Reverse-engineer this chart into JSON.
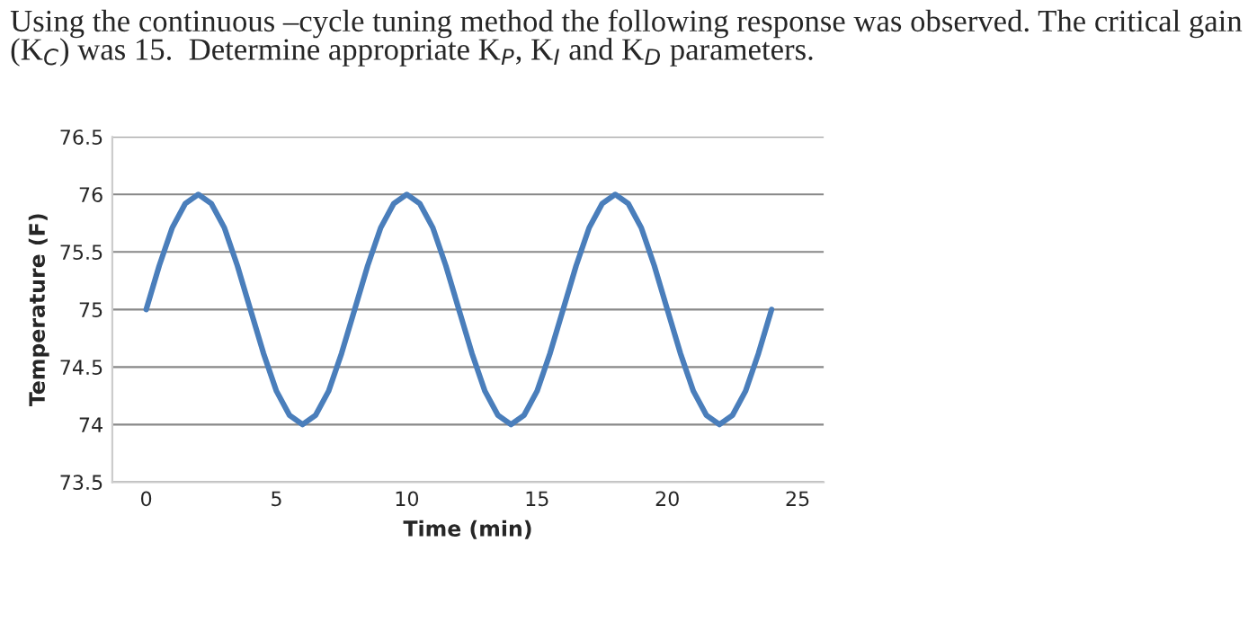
{
  "chart_data": {
    "type": "line",
    "title": "Using the continuous –cycle tuning method the following response was observed. The critical gain (K$_{C}$) was 15.  Determine appropriate K$_{P}$, K$_{I}$ and K$_{D}$ parameters.",
    "xlabel": "Time (min)",
    "ylabel": "Temperature (F)",
    "x": [
      0,
      0.5,
      1,
      1.5,
      2,
      2.5,
      3,
      3.5,
      4,
      4.5,
      5,
      5.5,
      6,
      6.5,
      7,
      7.5,
      8,
      8.5,
      9,
      9.5,
      10,
      10.5,
      11,
      11.5,
      12,
      12.5,
      13,
      13.5,
      14,
      14.5,
      15,
      15.5,
      16,
      16.5,
      17,
      17.5,
      18,
      18.5,
      19,
      19.5,
      20,
      20.5,
      21,
      21.5,
      22,
      22.5,
      23,
      23.5,
      24
    ],
    "series": [
      {
        "color": "#4a7ebb",
        "values": [
          75,
          75.38,
          75.71,
          75.92,
          76,
          75.92,
          75.71,
          75.38,
          75,
          74.62,
          74.29,
          74.08,
          74,
          74.08,
          74.29,
          74.62,
          75,
          75.38,
          75.71,
          75.92,
          76,
          75.92,
          75.71,
          75.38,
          75,
          74.62,
          74.29,
          74.08,
          74,
          74.08,
          74.29,
          74.62,
          75,
          75.38,
          75.71,
          75.92,
          76,
          75.92,
          75.71,
          75.38,
          75,
          74.62,
          74.29,
          74.08,
          74,
          74.08,
          74.29,
          74.62,
          75
        ]
      }
    ],
    "xlim": [
      -1.3,
      26
    ],
    "xticks": [
      0,
      5,
      10,
      15,
      20,
      25
    ],
    "ylim": [
      73.5,
      76.5
    ],
    "yticks": [
      73.5,
      74,
      74.5,
      75,
      75.5,
      76,
      76.5
    ],
    "grid": "y",
    "legend": false,
    "marker": "none",
    "line_style": "solid"
  }
}
